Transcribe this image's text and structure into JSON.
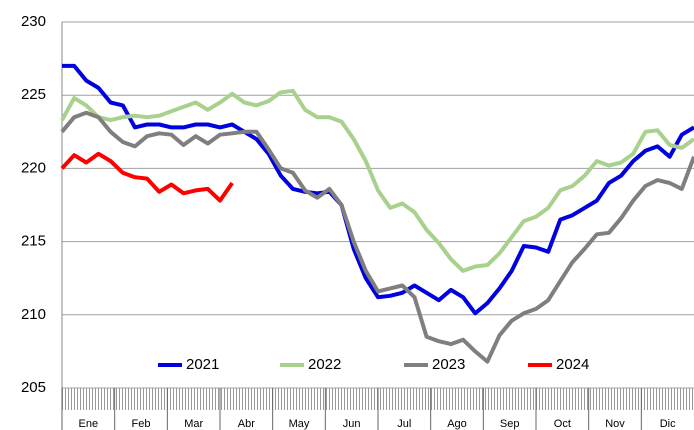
{
  "chart_data": {
    "type": "line",
    "categories": [
      "Ene",
      "Feb",
      "Mar",
      "Abr",
      "May",
      "Jun",
      "Jul",
      "Ago",
      "Sep",
      "Oct",
      "Nov",
      "Dic"
    ],
    "x": [
      0,
      1,
      2,
      3,
      4,
      5,
      6,
      7,
      8,
      9,
      10,
      11,
      12,
      13,
      14,
      15,
      16,
      17,
      18,
      19,
      20,
      21,
      22,
      23,
      24,
      25,
      26,
      27,
      28,
      29,
      30,
      31,
      32,
      33,
      34,
      35,
      36,
      37,
      38,
      39,
      40,
      41,
      42,
      43,
      44,
      45,
      46,
      47,
      48,
      49,
      50,
      51,
      52
    ],
    "xlim": [
      0,
      52
    ],
    "ylim": [
      205,
      230
    ],
    "yticks": [
      205,
      210,
      215,
      220,
      225,
      230
    ],
    "grid": true,
    "legend": "bottom",
    "series": [
      {
        "name": "2021",
        "color": "#0000e0",
        "values": [
          227,
          227,
          226,
          225.5,
          224.5,
          224.3,
          222.8,
          223,
          223,
          222.8,
          222.8,
          223,
          223,
          222.8,
          223,
          222.5,
          222,
          221,
          219.5,
          218.6,
          218.4,
          218.3,
          218.4,
          217.5,
          214.5,
          212.5,
          211.2,
          211.3,
          211.5,
          212,
          211.5,
          211,
          211.7,
          211.2,
          210.1,
          210.8,
          211.8,
          213,
          214.7,
          214.6,
          214.3,
          216.5,
          216.8,
          217.3,
          217.8,
          219,
          219.5,
          220.5,
          221.2,
          221.5,
          220.8,
          222.3,
          222.8
        ]
      },
      {
        "name": "2022",
        "color": "#a9d18e",
        "values": [
          223.3,
          224.8,
          224.3,
          223.5,
          223.3,
          223.5,
          223.6,
          223.5,
          223.6,
          223.9,
          224.2,
          224.5,
          224,
          224.5,
          225.1,
          224.5,
          224.3,
          224.6,
          225.2,
          225.3,
          224,
          223.5,
          223.5,
          223.2,
          222,
          220.5,
          218.5,
          217.3,
          217.6,
          217,
          215.8,
          214.9,
          213.8,
          213,
          213.3,
          213.4,
          214.2,
          215.3,
          216.4,
          216.7,
          217.3,
          218.5,
          218.8,
          219.5,
          220.5,
          220.2,
          220.4,
          221,
          222.5,
          222.6,
          221.6,
          221.4,
          222
        ]
      },
      {
        "name": "2023",
        "color": "#7f7f7f",
        "values": [
          222.5,
          223.5,
          223.8,
          223.5,
          222.5,
          221.8,
          221.5,
          222.2,
          222.4,
          222.3,
          221.6,
          222.2,
          221.7,
          222.3,
          222.4,
          222.5,
          222.5,
          221.3,
          220,
          219.7,
          218.5,
          218,
          218.6,
          217.5,
          215,
          213,
          211.6,
          211.8,
          212,
          211.2,
          208.5,
          208.2,
          208,
          208.3,
          207.5,
          206.8,
          208.6,
          209.6,
          210.1,
          210.4,
          211,
          212.3,
          213.6,
          214.5,
          215.5,
          215.6,
          216.6,
          217.8,
          218.8,
          219.2,
          219,
          218.6,
          220.8
        ]
      },
      {
        "name": "2024",
        "color": "#ff0000",
        "values": [
          220,
          220.9,
          220.4,
          221,
          220.5,
          219.7,
          219.4,
          219.3,
          218.4,
          218.9,
          218.3,
          218.5,
          218.6,
          217.8,
          219,
          null,
          null,
          null,
          null,
          null,
          null,
          null,
          null,
          null,
          null,
          null,
          null,
          null,
          null,
          null,
          null,
          null,
          null,
          null,
          null,
          null,
          null,
          null,
          null,
          null,
          null,
          null,
          null,
          null,
          null,
          null,
          null,
          null,
          null,
          null,
          null,
          null,
          null
        ]
      }
    ]
  }
}
